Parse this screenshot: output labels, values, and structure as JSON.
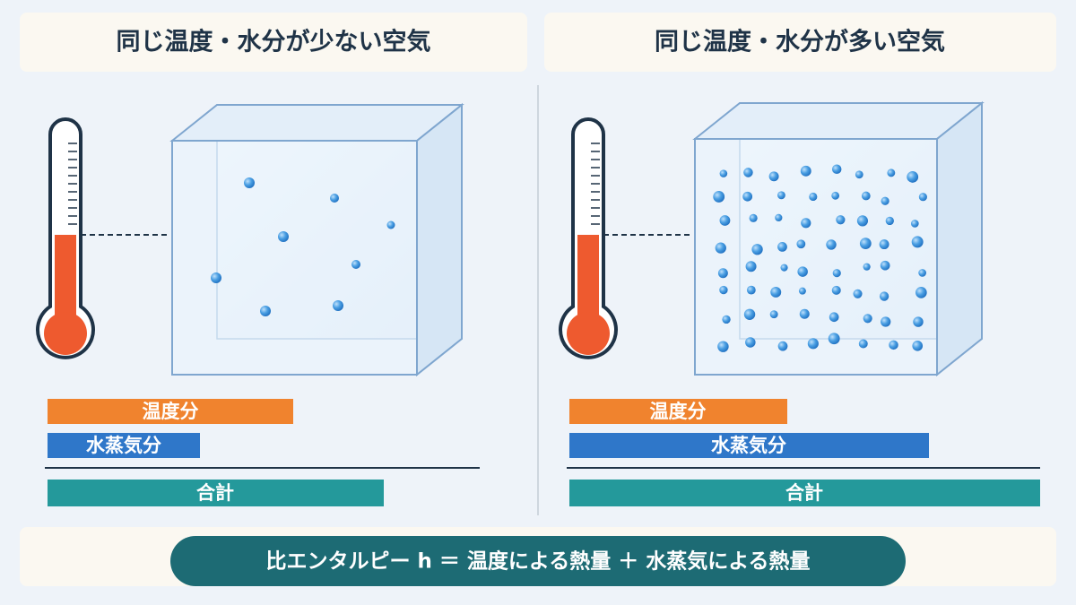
{
  "panels": [
    {
      "title": "同じ温度・水分が少ない空気",
      "bars": {
        "temperature": "温度分",
        "vapor": "水蒸気分",
        "total": "合計"
      }
    },
    {
      "title": "同じ温度・水分が多い空気",
      "bars": {
        "temperature": "温度分",
        "vapor": "水蒸気分",
        "total": "合計"
      }
    }
  ],
  "formula": "比エンタルピー h ＝ 温度による熱量 ＋ 水蒸気による熱量"
}
